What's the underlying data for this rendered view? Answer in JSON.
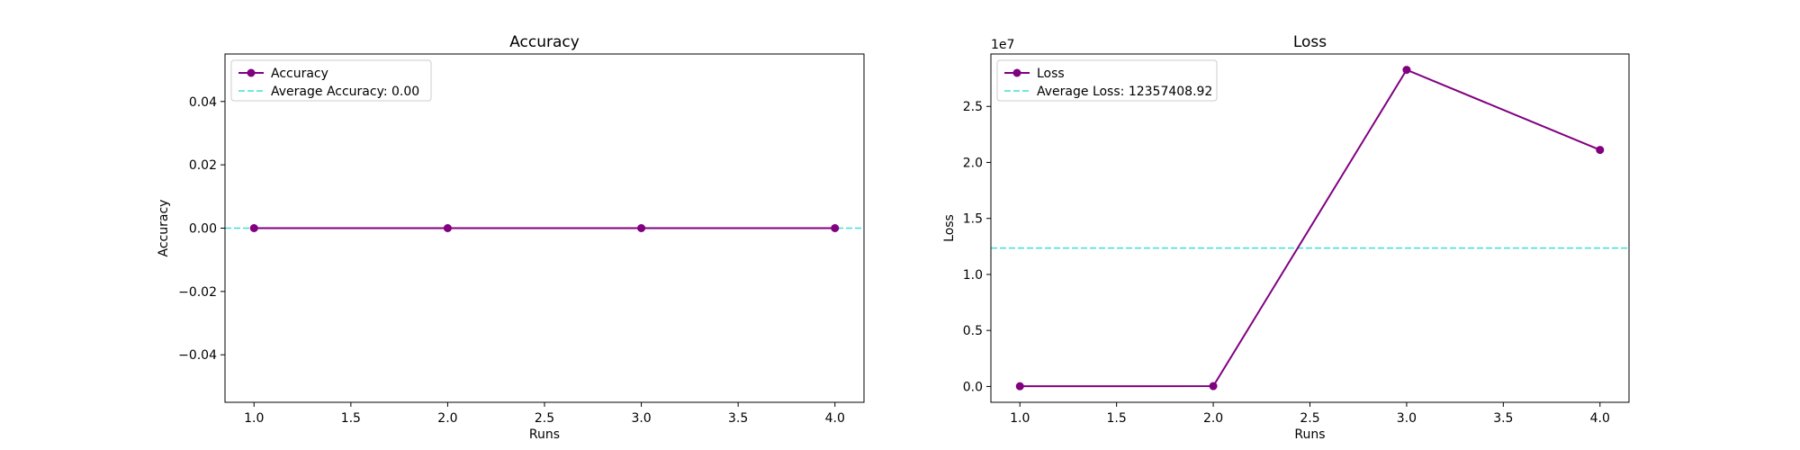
{
  "chart_data": [
    {
      "type": "line",
      "title": "Accuracy",
      "xlabel": "Runs",
      "ylabel": "Accuracy",
      "x": [
        1,
        2,
        3,
        4
      ],
      "xlim": [
        0.85,
        4.15
      ],
      "ylim": [
        -0.055,
        0.055
      ],
      "xticks": [
        1.0,
        1.5,
        2.0,
        2.5,
        3.0,
        3.5,
        4.0
      ],
      "xtick_labels": [
        "1.0",
        "1.5",
        "2.0",
        "2.5",
        "3.0",
        "3.5",
        "4.0"
      ],
      "yticks": [
        -0.04,
        -0.02,
        0.0,
        0.02,
        0.04
      ],
      "ytick_labels": [
        "−0.04",
        "−0.02",
        "0.00",
        "0.02",
        "0.04"
      ],
      "offset_label": "",
      "legend_position": "upper-left",
      "series": [
        {
          "name": "Accuracy",
          "values": [
            0,
            0,
            0,
            0
          ],
          "color": "#800080",
          "style": "solid",
          "marker": "circle"
        }
      ],
      "reference_lines": [
        {
          "name": "Average Accuracy: 0.00",
          "value": 0,
          "color": "#40E0D0",
          "style": "dashed"
        }
      ]
    },
    {
      "type": "line",
      "title": "Loss",
      "xlabel": "Runs",
      "ylabel": "Loss",
      "x": [
        1,
        2,
        3,
        4
      ],
      "xlim": [
        0.85,
        4.15
      ],
      "ylim": [
        -1413260,
        29678460
      ],
      "xticks": [
        1.0,
        1.5,
        2.0,
        2.5,
        3.0,
        3.5,
        4.0
      ],
      "xtick_labels": [
        "1.0",
        "1.5",
        "2.0",
        "2.5",
        "3.0",
        "3.5",
        "4.0"
      ],
      "yticks": [
        0,
        5000000,
        10000000,
        15000000,
        20000000,
        25000000
      ],
      "ytick_labels": [
        "0.0",
        "0.5",
        "1.0",
        "1.5",
        "2.0",
        "2.5"
      ],
      "offset_label": "1e7",
      "legend_position": "upper-left",
      "series": [
        {
          "name": "Loss",
          "values": [
            20000,
            30000,
            28265200,
            21114400
          ],
          "color": "#800080",
          "style": "solid",
          "marker": "circle"
        }
      ],
      "reference_lines": [
        {
          "name": "Average Loss: 12357408.92",
          "value": 12357408.92,
          "color": "#40E0D0",
          "style": "dashed"
        }
      ]
    }
  ]
}
